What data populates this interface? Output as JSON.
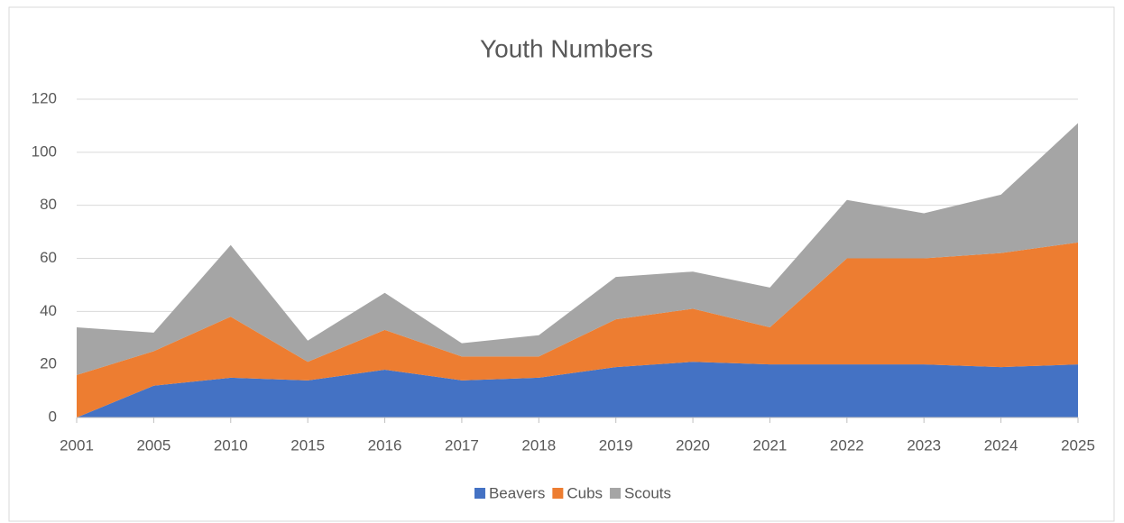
{
  "chart_data": {
    "type": "stacked_area",
    "title": "Youth Numbers",
    "categories": [
      "2001",
      "2005",
      "2010",
      "2015",
      "2016",
      "2017",
      "2018",
      "2019",
      "2020",
      "2021",
      "2022",
      "2023",
      "2024",
      "2025"
    ],
    "series": [
      {
        "name": "Beavers",
        "color": "#4472c4",
        "values": [
          0,
          12,
          15,
          14,
          18,
          14,
          15,
          19,
          21,
          20,
          20,
          20,
          19,
          20
        ]
      },
      {
        "name": "Cubs",
        "color": "#ed7d31",
        "values": [
          16,
          13,
          23,
          7,
          15,
          9,
          8,
          18,
          20,
          14,
          40,
          40,
          43,
          46
        ]
      },
      {
        "name": "Scouts",
        "color": "#a5a5a5",
        "values": [
          18,
          7,
          27,
          8,
          14,
          5,
          8,
          16,
          14,
          15,
          22,
          17,
          22,
          45
        ]
      }
    ],
    "ylim": [
      0,
      120
    ],
    "yticks": [
      0,
      20,
      40,
      60,
      80,
      100,
      120
    ],
    "grid": true,
    "legend": "bottom"
  }
}
